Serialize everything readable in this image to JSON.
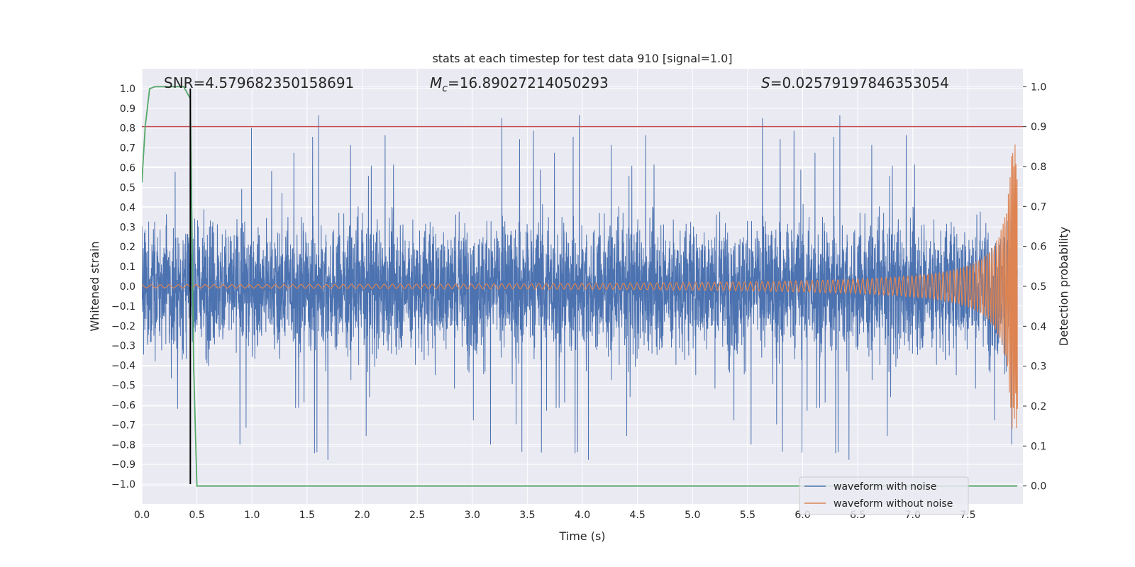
{
  "chart_data": {
    "type": "line",
    "title": "stats at each timestep for test data 910 [signal=1.0]",
    "xlabel": "Time (s)",
    "ylabel": "Whitened strain",
    "y2label": "Detection probability",
    "xlim": [
      0.0,
      8.0
    ],
    "ylim": [
      -1.1,
      1.1
    ],
    "y2lim": [
      -0.045,
      1.045
    ],
    "x_ticks": [
      "0.0",
      "0.5",
      "1.0",
      "1.5",
      "2.0",
      "2.5",
      "3.0",
      "3.5",
      "4.0",
      "4.5",
      "5.0",
      "5.5",
      "6.0",
      "6.5",
      "7.0",
      "7.5"
    ],
    "y_ticks": [
      "1.0",
      "0.9",
      "0.8",
      "0.7",
      "0.6",
      "0.5",
      "0.4",
      "0.3",
      "0.2",
      "0.1",
      "0.0",
      "−0.1",
      "−0.2",
      "−0.3",
      "−0.4",
      "−0.5",
      "−0.6",
      "−0.7",
      "−0.8",
      "−0.9",
      "−1.0"
    ],
    "y2_ticks": [
      "1.0",
      "0.9",
      "0.8",
      "0.7",
      "0.6",
      "0.5",
      "0.4",
      "0.3",
      "0.2",
      "0.1",
      "0.0"
    ],
    "annotations": {
      "snr": "SNR=4.579682350158691",
      "mc_symbol": "M",
      "mc_sub": "c",
      "mc_value": "=16.89027214050293",
      "s_symbol": "S",
      "s_value": "=0.025791978463530​54"
    },
    "series": [
      {
        "name": "waveform with noise",
        "color": "#4c72b0",
        "envelope": {
          "typical_amplitude": 0.42,
          "peak_max": 0.99,
          "peak_min": -1.0
        }
      },
      {
        "name": "waveform without noise",
        "color": "#dd8452",
        "chirp": {
          "start_amplitude": 0.008,
          "end_amplitude": 0.72,
          "end_time": 7.95
        }
      },
      {
        "color": "#55a868",
        "axis": "right",
        "x": [
          0.0,
          0.03,
          0.07,
          0.12,
          0.2,
          0.3,
          0.38,
          0.44,
          0.47,
          0.5,
          7.95
        ],
        "y": [
          0.76,
          0.9,
          0.995,
          1.0,
          1.0,
          1.0,
          1.0,
          0.97,
          0.3,
          0.0,
          0.0
        ]
      }
    ],
    "threshold": {
      "axis": "right",
      "value": 0.9,
      "color": "#c44e52"
    },
    "marker_line": {
      "x": 0.44,
      "color": "#000000"
    },
    "grid": true,
    "legend_location": "lower right",
    "background": "#eaeaf2"
  }
}
